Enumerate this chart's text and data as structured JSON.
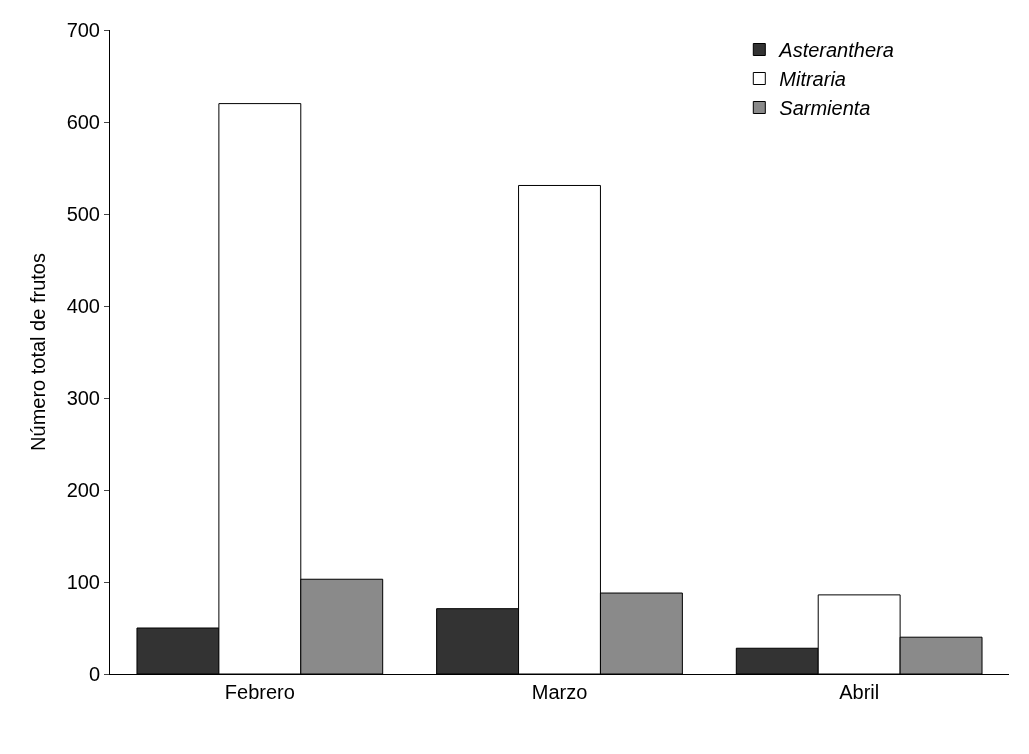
{
  "chart_data": {
    "type": "bar",
    "ylabel": "Número total de frutos",
    "categories": [
      "Febrero",
      "Marzo",
      "Abril"
    ],
    "series": [
      {
        "name": "Asteranthera",
        "color": "#333333",
        "values": [
          50,
          71,
          28
        ]
      },
      {
        "name": "Mitraria",
        "color": "#ffffff",
        "values": [
          620,
          531,
          86
        ]
      },
      {
        "name": "Sarmienta",
        "color": "#8a8a8a",
        "values": [
          103,
          88,
          40
        ]
      }
    ],
    "ylim": [
      0,
      700
    ],
    "yticks": [
      0,
      100,
      200,
      300,
      400,
      500,
      600,
      700
    ],
    "grid": false,
    "legend": "top right"
  }
}
